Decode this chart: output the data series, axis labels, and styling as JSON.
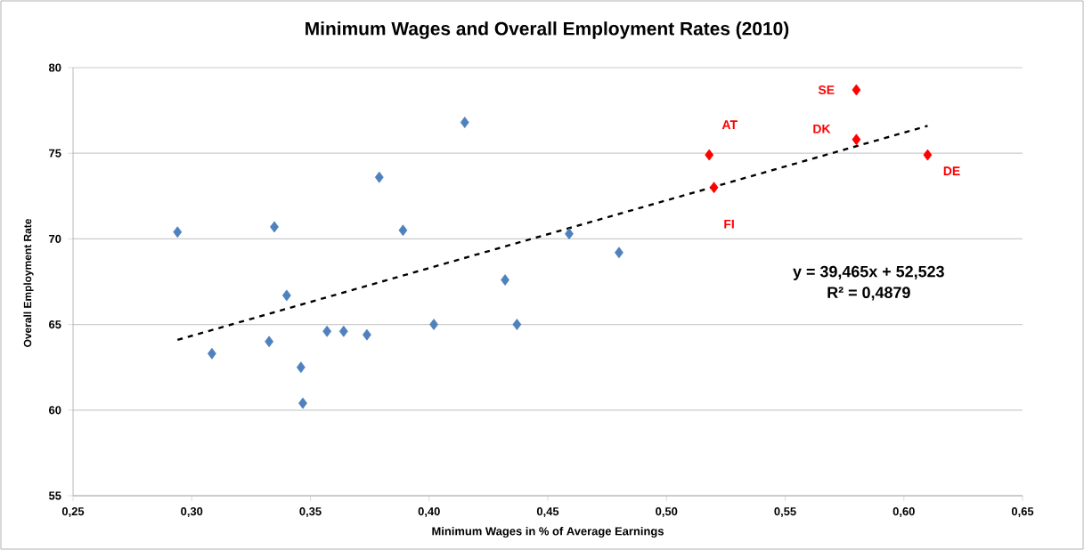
{
  "chart_data": {
    "type": "scatter",
    "title": "Minimum Wages and Overall Employment Rates (2010)",
    "xlabel": "Minimum Wages in % of Average Earnings",
    "ylabel": "Overall Employment Rate",
    "series": [
      {
        "color": "#4f81bd",
        "x": [
          0.294,
          0.3085,
          0.3326,
          0.3348,
          0.34,
          0.346,
          0.3468,
          0.357,
          0.364,
          0.3738,
          0.379,
          0.389,
          0.402,
          0.415,
          0.432,
          0.437,
          0.459,
          0.48
        ],
        "values": [
          70.4,
          63.3,
          64.0,
          70.7,
          66.7,
          62.5,
          60.4,
          64.6,
          64.6,
          64.4,
          73.6,
          70.5,
          65.0,
          76.8,
          67.6,
          65.0,
          70.3,
          69.2
        ]
      },
      {
        "color": "#ff0000",
        "x": [
          0.518,
          0.52,
          0.58,
          0.58,
          0.61
        ],
        "values": [
          74.9,
          73.0,
          78.7,
          75.8,
          74.9
        ]
      },
      {
        "type": "line",
        "line_style": "dashed",
        "marker": "none",
        "color": "#000000",
        "x": [
          0.294,
          0.61
        ],
        "values": [
          64.1,
          76.6
        ]
      }
    ],
    "marker": "diamond",
    "annotations": [
      {
        "text": "AT",
        "x": 0.518,
        "y": 74.9
      },
      {
        "text": "FI",
        "x": 0.52,
        "y": 73.0
      },
      {
        "text": "SE",
        "x": 0.58,
        "y": 78.7
      },
      {
        "text": "DK",
        "x": 0.58,
        "y": 75.8
      },
      {
        "text": "DE",
        "x": 0.61,
        "y": 74.9
      },
      "y = 39,465x + 52,523",
      "R² = 0,4879"
    ],
    "xlim": [
      0.25,
      0.65
    ],
    "ylim": [
      55,
      80
    ],
    "xticks": [
      {
        "value": 0.25,
        "label": "0,25"
      },
      {
        "value": 0.3,
        "label": "0,30"
      },
      {
        "value": 0.35,
        "label": "0,35"
      },
      {
        "value": 0.4,
        "label": "0,40"
      },
      {
        "value": 0.45,
        "label": "0,45"
      },
      {
        "value": 0.5,
        "label": "0,50"
      },
      {
        "value": 0.55,
        "label": "0,55"
      },
      {
        "value": 0.6,
        "label": "0,60"
      },
      {
        "value": 0.65,
        "label": "0,65"
      }
    ],
    "yticks": [
      55,
      60,
      65,
      70,
      75,
      80
    ],
    "grid": "y"
  }
}
